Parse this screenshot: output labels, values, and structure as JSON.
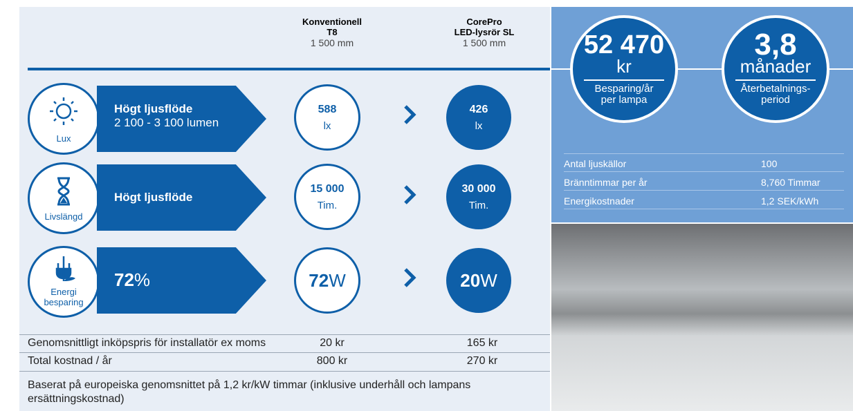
{
  "header": {
    "conventional": {
      "name": "Konventionell",
      "type": "T8",
      "length": "1 500 mm"
    },
    "led": {
      "name": "CorePro",
      "type": "LED-lysrör SL",
      "length": "1 500 mm"
    }
  },
  "rows": [
    {
      "icon_label": "Lux",
      "title": "Högt ljusflöde",
      "subtitle": "2 100 - 3 100 lumen",
      "conventional_value": "588",
      "conventional_unit": "lx",
      "led_value": "426",
      "led_unit": "lx"
    },
    {
      "icon_label": "Livslängd",
      "title": "Högt ljusflöde",
      "conventional_value": "15 000",
      "conventional_unit": "Tim.",
      "led_value": "30 000",
      "led_unit": "Tim."
    },
    {
      "icon_label": [
        "Energi",
        "besparing"
      ],
      "title": "72",
      "title_unit": "%",
      "conventional_value": "72",
      "conventional_unit": "W",
      "led_value": "20",
      "led_unit": "W"
    }
  ],
  "table": {
    "rows": [
      [
        "Genomsnittligt inköpspris för installatör ex moms",
        "20 kr",
        "165 kr"
      ],
      [
        "Total kostnad / år",
        "800 kr",
        "270 kr"
      ]
    ],
    "footnote": "Baserat på europeiska genomsnittet på 1,2 kr/kW timmar (inklusive underhåll och lampans ersättningskostnad)"
  },
  "summary": [
    {
      "value": "52 470",
      "unit": "kr",
      "label": [
        "Besparing/år",
        "per lampa"
      ]
    },
    {
      "value": "3,8",
      "unit": "månader",
      "label": [
        "Återbetalnings-",
        "period"
      ]
    }
  ],
  "specs": {
    "rows": [
      [
        "Antal ljuskällor",
        "100"
      ],
      [
        "Bränntimmar per år",
        "8,760 Timmar"
      ],
      [
        "Energikostnader",
        "1,2 SEK/kWh"
      ]
    ]
  }
}
